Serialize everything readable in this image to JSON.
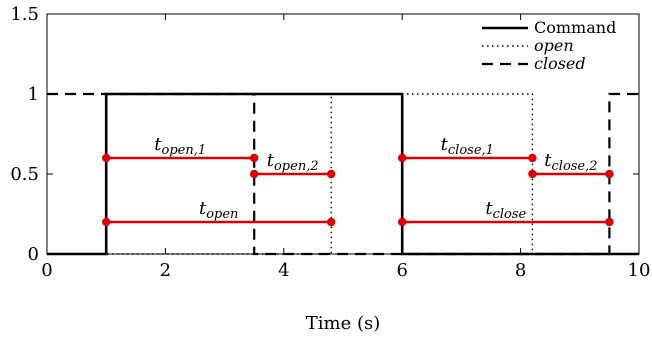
{
  "chart_data": {
    "type": "line",
    "title": "",
    "xlabel": "Time (s)",
    "ylabel": "",
    "xlim": [
      0,
      10
    ],
    "ylim": [
      0,
      1.5
    ],
    "xticks": [
      0,
      2,
      4,
      6,
      8,
      10
    ],
    "xtick_labels": [
      "0",
      "2",
      "4",
      "6",
      "8",
      "10"
    ],
    "yticks": [
      0,
      0.5,
      1,
      1.5
    ],
    "ytick_labels": [
      "0",
      "0.5",
      "1",
      "1.5"
    ],
    "grid": false,
    "legend_position": "top-right",
    "series": [
      {
        "name": "Command",
        "style": "solid",
        "color": "#000000",
        "x": [
          0,
          1,
          1,
          6,
          6,
          10
        ],
        "y": [
          0,
          0,
          1,
          1,
          0,
          0
        ]
      },
      {
        "name": "open",
        "style": "dotted",
        "color": "#000000",
        "x": [
          0,
          3.5,
          3.5,
          4.8,
          4.8,
          8.2,
          8.2,
          10
        ],
        "y": [
          0,
          0,
          0,
          0,
          1,
          1,
          0,
          0
        ]
      },
      {
        "name": "closed",
        "style": "dashed",
        "color": "#000000",
        "x": [
          0,
          1,
          1,
          3.5,
          3.5,
          9.5,
          9.5,
          10
        ],
        "y": [
          1,
          1,
          1,
          1,
          0,
          0,
          1,
          1
        ]
      }
    ],
    "annotations": [
      {
        "id": "t_open_1",
        "base": "t",
        "sub": "open,1",
        "x0": 1,
        "x1": 3.5,
        "y": 0.6,
        "color": "#e00000"
      },
      {
        "id": "t_open_2",
        "base": "t",
        "sub": "open,2",
        "x0": 3.5,
        "x1": 4.8,
        "y": 0.5,
        "color": "#e00000"
      },
      {
        "id": "t_open",
        "base": "t",
        "sub": "open",
        "x0": 1,
        "x1": 4.8,
        "y": 0.2,
        "color": "#e00000"
      },
      {
        "id": "t_close_1",
        "base": "t",
        "sub": "close,1",
        "x0": 6,
        "x1": 8.2,
        "y": 0.6,
        "color": "#e00000"
      },
      {
        "id": "t_close_2",
        "base": "t",
        "sub": "close,2",
        "x0": 8.2,
        "x1": 9.5,
        "y": 0.5,
        "color": "#e00000"
      },
      {
        "id": "t_close",
        "base": "t",
        "sub": "close",
        "x0": 6,
        "x1": 9.5,
        "y": 0.2,
        "color": "#e00000"
      }
    ]
  }
}
